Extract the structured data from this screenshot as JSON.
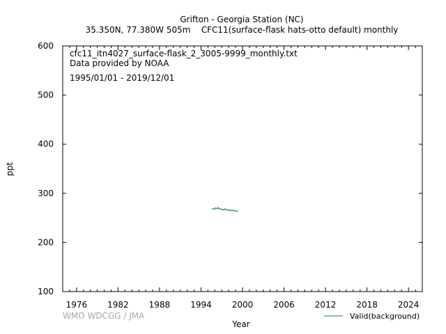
{
  "chart_data": {
    "type": "line",
    "title": "Grifton - Georgia Station (NC)",
    "subtitle": "35.350N, 77.380W 505m    CFC11(surface-flask hats-otto default) monthly",
    "info_lines": [
      "cfc11_itn4027_surface-flask_2_3005-9999_monthly.txt",
      "Data provided by NOAA",
      "1995/01/01 - 2019/12/01"
    ],
    "xlabel": "Year",
    "ylabel": "ppt",
    "xlim": [
      1974,
      2026
    ],
    "ylim": [
      100,
      600
    ],
    "x_ticks": [
      1976,
      1982,
      1988,
      1994,
      2000,
      2006,
      2012,
      2018,
      2024
    ],
    "y_ticks": [
      100,
      200,
      300,
      400,
      500,
      600
    ],
    "credit": "WMO WDCGG / JMA",
    "series": [
      {
        "name": "Valid(background)",
        "color": "#1e7a44",
        "x": [
          1995.62,
          1995.79,
          1995.96,
          1996.12,
          1996.29,
          1996.46,
          1996.62,
          1996.79,
          1996.96,
          1997.12,
          1997.29,
          1997.46,
          1997.62,
          1997.79,
          1997.96,
          1998.12,
          1998.29,
          1998.46,
          1998.62,
          1998.79,
          1998.96,
          1999.12,
          1999.29
        ],
        "y": [
          268.0,
          269.5,
          267.5,
          270.5,
          268.5,
          271.0,
          268.0,
          269.0,
          266.5,
          267.5,
          266.0,
          268.5,
          265.5,
          267.0,
          265.0,
          266.5,
          264.5,
          266.0,
          264.5,
          265.5,
          263.5,
          264.5,
          263.0
        ]
      }
    ]
  }
}
